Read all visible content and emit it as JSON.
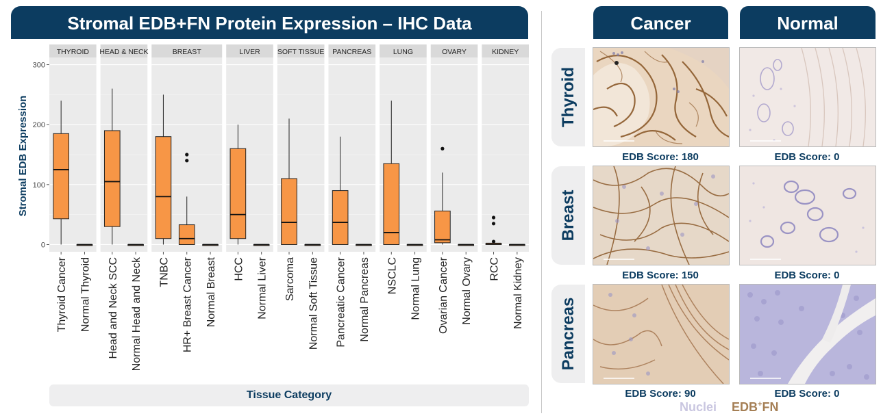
{
  "chart_data": {
    "type": "boxplot",
    "title": "Stromal EDB+FN Protein Expression – IHC Data",
    "ylabel": "Stromal EDB Expression",
    "xlabel": "Tissue Category",
    "ylim": [
      -12,
      312
    ],
    "yticks": [
      0,
      100,
      200,
      300
    ],
    "box_color": "#f79646",
    "panels": [
      {
        "label": "THYROID",
        "groups": [
          {
            "name": "Thyroid Cancer",
            "min": 0,
            "q1": 43,
            "median": 125,
            "q3": 185,
            "max": 240,
            "outliers": []
          },
          {
            "name": "Normal Thyroid",
            "min": 0,
            "q1": 0,
            "median": 0,
            "q3": 0,
            "max": 0,
            "outliers": []
          }
        ]
      },
      {
        "label": "HEAD & NECK",
        "groups": [
          {
            "name": "Head and Neck SCC",
            "min": 0,
            "q1": 30,
            "median": 105,
            "q3": 190,
            "max": 260,
            "outliers": []
          },
          {
            "name": "Normal Head and Neck",
            "min": 0,
            "q1": 0,
            "median": 0,
            "q3": 0,
            "max": 0,
            "outliers": []
          }
        ]
      },
      {
        "label": "BREAST",
        "groups": [
          {
            "name": "TNBC",
            "min": 0,
            "q1": 10,
            "median": 80,
            "q3": 180,
            "max": 250,
            "outliers": []
          },
          {
            "name": "HR+ Breast Cancer",
            "min": 0,
            "q1": 0,
            "median": 10,
            "q3": 33,
            "max": 80,
            "outliers": [
              140,
              150
            ]
          },
          {
            "name": "Normal Breast",
            "min": 0,
            "q1": 0,
            "median": 0,
            "q3": 0,
            "max": 0,
            "outliers": []
          }
        ]
      },
      {
        "label": "LIVER",
        "groups": [
          {
            "name": "HCC",
            "min": 0,
            "q1": 10,
            "median": 50,
            "q3": 160,
            "max": 200,
            "outliers": []
          },
          {
            "name": "Normal Liver",
            "min": 0,
            "q1": 0,
            "median": 0,
            "q3": 0,
            "max": 0,
            "outliers": []
          }
        ]
      },
      {
        "label": "SOFT TISSUE",
        "groups": [
          {
            "name": "Sarcoma",
            "min": 0,
            "q1": 0,
            "median": 37,
            "q3": 110,
            "max": 210,
            "outliers": []
          },
          {
            "name": "Normal Soft Tissue",
            "min": 0,
            "q1": 0,
            "median": 0,
            "q3": 0,
            "max": 0,
            "outliers": []
          }
        ]
      },
      {
        "label": "PANCREAS",
        "groups": [
          {
            "name": "Pancreatic Cancer",
            "min": 0,
            "q1": 0,
            "median": 37,
            "q3": 90,
            "max": 180,
            "outliers": []
          },
          {
            "name": "Normal Pancreas",
            "min": 0,
            "q1": 0,
            "median": 0,
            "q3": 0,
            "max": 0,
            "outliers": []
          }
        ]
      },
      {
        "label": "LUNG",
        "groups": [
          {
            "name": "NSCLC",
            "min": 0,
            "q1": 0,
            "median": 20,
            "q3": 135,
            "max": 240,
            "outliers": []
          },
          {
            "name": "Normal Lung",
            "min": 0,
            "q1": 0,
            "median": 0,
            "q3": 0,
            "max": 0,
            "outliers": []
          }
        ]
      },
      {
        "label": "OVARY",
        "groups": [
          {
            "name": "Ovarian Cancer",
            "min": 0,
            "q1": 3,
            "median": 8,
            "q3": 56,
            "max": 120,
            "outliers": [
              160
            ]
          },
          {
            "name": "Normal Ovary",
            "min": 0,
            "q1": 0,
            "median": 0,
            "q3": 0,
            "max": 0,
            "outliers": []
          }
        ]
      },
      {
        "label": "KIDNEY",
        "groups": [
          {
            "name": "RCC",
            "min": 0,
            "q1": 0,
            "median": 2,
            "q3": 2,
            "max": 2,
            "outliers": [
              5,
              35,
              45
            ]
          },
          {
            "name": "Normal Kidney",
            "min": 0,
            "q1": 0,
            "median": 0,
            "q3": 0,
            "max": 0,
            "outliers": []
          }
        ]
      }
    ]
  },
  "ihc": {
    "col_headers": [
      "Cancer",
      "Normal"
    ],
    "rows": [
      {
        "label": "Thyroid",
        "cancer_score": "EDB Score: 180",
        "normal_score": "EDB Score: 0"
      },
      {
        "label": "Breast",
        "cancer_score": "EDB Score: 150",
        "normal_score": "EDB Score: 0"
      },
      {
        "label": "Pancreas",
        "cancer_score": "EDB Score: 90",
        "normal_score": "EDB Score: 0"
      }
    ]
  },
  "legend": {
    "nuclei": "Nuclei",
    "nuclei_color": "#c9c6e0",
    "edb_main": "EDB",
    "edb_sup": "+",
    "edb_tail": "FN",
    "edb_color": "#a57f55"
  }
}
